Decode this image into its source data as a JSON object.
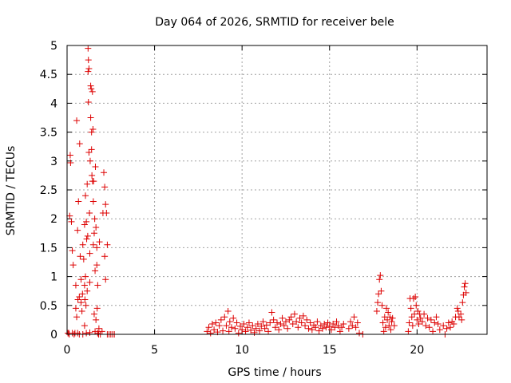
{
  "chart_data": {
    "type": "scatter",
    "title": "Day 064 of 2026, SRMTID for receiver bele",
    "xlabel": "GPS time / hours",
    "ylabel": "SRMTID / TECUs",
    "xlim": [
      0,
      24
    ],
    "ylim": [
      0,
      5
    ],
    "xticks": [
      0,
      5,
      10,
      15,
      20
    ],
    "yticks": [
      0,
      0.5,
      1,
      1.5,
      2,
      2.5,
      3,
      3.5,
      4,
      4.5,
      5
    ],
    "grid": true,
    "marker": "+",
    "color": "#dd0000",
    "series": [
      {
        "name": "SRMTID",
        "points": [
          [
            0.05,
            0.02
          ],
          [
            0.12,
            0.0
          ],
          [
            0.15,
            2.05
          ],
          [
            0.18,
            3.1
          ],
          [
            0.2,
            2.97
          ],
          [
            0.25,
            1.95
          ],
          [
            0.3,
            1.45
          ],
          [
            0.35,
            1.2
          ],
          [
            0.4,
            0.0
          ],
          [
            0.45,
            0.02
          ],
          [
            0.5,
            0.45
          ],
          [
            0.5,
            0.85
          ],
          [
            0.55,
            0.3
          ],
          [
            0.55,
            3.7
          ],
          [
            0.6,
            1.8
          ],
          [
            0.62,
            0.6
          ],
          [
            0.65,
            2.3
          ],
          [
            0.7,
            0.0
          ],
          [
            0.7,
            0.65
          ],
          [
            0.72,
            3.3
          ],
          [
            0.75,
            1.35
          ],
          [
            0.8,
            0.55
          ],
          [
            0.8,
            0.95
          ],
          [
            0.85,
            0.4
          ],
          [
            0.88,
            0.7
          ],
          [
            0.9,
            1.55
          ],
          [
            0.9,
            0.0
          ],
          [
            0.95,
            1.3
          ],
          [
            1.0,
            0.15
          ],
          [
            1.0,
            1.9
          ],
          [
            1.0,
            0.85
          ],
          [
            1.02,
            0.6
          ],
          [
            1.05,
            1.0
          ],
          [
            1.05,
            2.4
          ],
          [
            1.08,
            0.5
          ],
          [
            1.1,
            1.95
          ],
          [
            1.1,
            0.02
          ],
          [
            1.12,
            1.65
          ],
          [
            1.15,
            0.75
          ],
          [
            1.15,
            2.6
          ],
          [
            1.18,
            1.7
          ],
          [
            1.2,
            4.55
          ],
          [
            1.2,
            4.95
          ],
          [
            1.22,
            4.02
          ],
          [
            1.22,
            4.75
          ],
          [
            1.25,
            4.6
          ],
          [
            1.25,
            3.15
          ],
          [
            1.28,
            2.1
          ],
          [
            1.3,
            1.4
          ],
          [
            1.3,
            0.9
          ],
          [
            1.32,
            3.0
          ],
          [
            1.35,
            4.3
          ],
          [
            1.35,
            3.75
          ],
          [
            1.38,
            4.25
          ],
          [
            1.4,
            3.5
          ],
          [
            1.4,
            3.2
          ],
          [
            1.42,
            2.75
          ],
          [
            1.45,
            2.65
          ],
          [
            1.45,
            4.2
          ],
          [
            1.48,
            3.55
          ],
          [
            1.5,
            2.3
          ],
          [
            1.5,
            1.55
          ],
          [
            1.52,
            2.65
          ],
          [
            1.55,
            0.35
          ],
          [
            1.55,
            1.75
          ],
          [
            1.58,
            2.0
          ],
          [
            1.6,
            1.1
          ],
          [
            1.6,
            0.05
          ],
          [
            1.62,
            2.9
          ],
          [
            1.65,
            1.85
          ],
          [
            1.65,
            0.25
          ],
          [
            1.7,
            1.5
          ],
          [
            1.7,
            1.2
          ],
          [
            1.72,
            0.45
          ],
          [
            1.75,
            0.85
          ],
          [
            1.75,
            0.02
          ],
          [
            1.8,
            0.0
          ],
          [
            1.82,
            0.1
          ],
          [
            1.85,
            1.6
          ],
          [
            1.9,
            0.0
          ],
          [
            2.0,
            0.05
          ],
          [
            2.05,
            2.1
          ],
          [
            2.1,
            2.8
          ],
          [
            2.15,
            2.55
          ],
          [
            2.15,
            1.35
          ],
          [
            2.2,
            2.25
          ],
          [
            2.2,
            0.95
          ],
          [
            2.25,
            2.1
          ],
          [
            2.3,
            0.0
          ],
          [
            2.3,
            1.55
          ],
          [
            2.4,
            0.0
          ],
          [
            2.5,
            0.0
          ],
          [
            2.6,
            0.0
          ],
          [
            2.7,
            0.0
          ],
          [
            0.1,
            0.02
          ],
          [
            0.3,
            0.02
          ],
          [
            0.6,
            0.02
          ],
          [
            1.3,
            0.03
          ],
          [
            8.0,
            0.05
          ],
          [
            8.1,
            0.12
          ],
          [
            8.2,
            0.02
          ],
          [
            8.3,
            0.18
          ],
          [
            8.4,
            0.08
          ],
          [
            8.5,
            0.2
          ],
          [
            8.6,
            0.04
          ],
          [
            8.7,
            0.15
          ],
          [
            8.8,
            0.25
          ],
          [
            8.9,
            0.06
          ],
          [
            9.0,
            0.3
          ],
          [
            9.1,
            0.15
          ],
          [
            9.2,
            0.4
          ],
          [
            9.25,
            0.05
          ],
          [
            9.3,
            0.22
          ],
          [
            9.4,
            0.12
          ],
          [
            9.5,
            0.28
          ],
          [
            9.6,
            0.1
          ],
          [
            9.7,
            0.2
          ],
          [
            9.8,
            0.02
          ],
          [
            9.9,
            0.14
          ],
          [
            10.0,
            0.08
          ],
          [
            10.1,
            0.18
          ],
          [
            10.2,
            0.05
          ],
          [
            10.3,
            0.12
          ],
          [
            10.4,
            0.2
          ],
          [
            10.5,
            0.07
          ],
          [
            10.6,
            0.15
          ],
          [
            10.7,
            0.03
          ],
          [
            10.8,
            0.1
          ],
          [
            10.9,
            0.18
          ],
          [
            11.0,
            0.06
          ],
          [
            11.1,
            0.14
          ],
          [
            11.2,
            0.22
          ],
          [
            11.3,
            0.1
          ],
          [
            11.4,
            0.16
          ],
          [
            11.5,
            0.05
          ],
          [
            11.6,
            0.2
          ],
          [
            11.7,
            0.38
          ],
          [
            11.8,
            0.25
          ],
          [
            11.9,
            0.12
          ],
          [
            12.0,
            0.2
          ],
          [
            12.1,
            0.08
          ],
          [
            12.2,
            0.18
          ],
          [
            12.3,
            0.28
          ],
          [
            12.4,
            0.15
          ],
          [
            12.5,
            0.22
          ],
          [
            12.6,
            0.1
          ],
          [
            12.7,
            0.25
          ],
          [
            12.8,
            0.3
          ],
          [
            12.9,
            0.18
          ],
          [
            13.0,
            0.35
          ],
          [
            13.1,
            0.22
          ],
          [
            13.2,
            0.12
          ],
          [
            13.3,
            0.28
          ],
          [
            13.4,
            0.2
          ],
          [
            13.5,
            0.32
          ],
          [
            13.6,
            0.15
          ],
          [
            13.7,
            0.25
          ],
          [
            13.8,
            0.1
          ],
          [
            13.9,
            0.2
          ],
          [
            14.0,
            0.08
          ],
          [
            14.1,
            0.16
          ],
          [
            14.2,
            0.12
          ],
          [
            14.3,
            0.22
          ],
          [
            14.4,
            0.06
          ],
          [
            14.5,
            0.15
          ],
          [
            14.6,
            0.1
          ],
          [
            14.7,
            0.18
          ],
          [
            14.8,
            0.12
          ],
          [
            14.9,
            0.2
          ],
          [
            15.0,
            0.14
          ],
          [
            15.1,
            0.08
          ],
          [
            15.2,
            0.18
          ],
          [
            15.3,
            0.12
          ],
          [
            15.4,
            0.22
          ],
          [
            15.5,
            0.15
          ],
          [
            15.6,
            0.05
          ],
          [
            15.7,
            0.12
          ],
          [
            15.8,
            0.18
          ],
          [
            16.1,
            0.1
          ],
          [
            16.2,
            0.22
          ],
          [
            16.3,
            0.15
          ],
          [
            16.4,
            0.3
          ],
          [
            16.5,
            0.12
          ],
          [
            16.6,
            0.2
          ],
          [
            16.7,
            0.02
          ],
          [
            16.9,
            0.0
          ],
          [
            17.7,
            0.4
          ],
          [
            17.75,
            0.55
          ],
          [
            17.8,
            0.7
          ],
          [
            17.85,
            0.95
          ],
          [
            17.9,
            1.02
          ],
          [
            17.95,
            0.75
          ],
          [
            18.0,
            0.5
          ],
          [
            18.05,
            0.2
          ],
          [
            18.1,
            0.05
          ],
          [
            18.15,
            0.3
          ],
          [
            18.2,
            0.12
          ],
          [
            18.25,
            0.45
          ],
          [
            18.3,
            0.25
          ],
          [
            18.35,
            0.38
          ],
          [
            18.4,
            0.15
          ],
          [
            18.45,
            0.3
          ],
          [
            18.5,
            0.08
          ],
          [
            18.55,
            0.22
          ],
          [
            18.6,
            0.28
          ],
          [
            18.7,
            0.15
          ],
          [
            19.5,
            0.05
          ],
          [
            19.55,
            0.2
          ],
          [
            19.6,
            0.62
          ],
          [
            19.65,
            0.45
          ],
          [
            19.7,
            0.3
          ],
          [
            19.75,
            0.15
          ],
          [
            19.8,
            0.62
          ],
          [
            19.85,
            0.35
          ],
          [
            19.9,
            0.65
          ],
          [
            19.95,
            0.5
          ],
          [
            20.0,
            0.25
          ],
          [
            20.05,
            0.4
          ],
          [
            20.1,
            0.18
          ],
          [
            20.15,
            0.35
          ],
          [
            20.2,
            0.28
          ],
          [
            20.3,
            0.22
          ],
          [
            20.4,
            0.35
          ],
          [
            20.5,
            0.15
          ],
          [
            20.6,
            0.28
          ],
          [
            20.7,
            0.12
          ],
          [
            20.8,
            0.25
          ],
          [
            20.9,
            0.05
          ],
          [
            21.0,
            0.2
          ],
          [
            21.1,
            0.3
          ],
          [
            21.2,
            0.18
          ],
          [
            21.3,
            0.08
          ],
          [
            21.5,
            0.15
          ],
          [
            21.6,
            0.0
          ],
          [
            21.7,
            0.1
          ],
          [
            21.8,
            0.2
          ],
          [
            21.9,
            0.12
          ],
          [
            22.0,
            0.22
          ],
          [
            22.1,
            0.18
          ],
          [
            22.2,
            0.3
          ],
          [
            22.3,
            0.45
          ],
          [
            22.35,
            0.4
          ],
          [
            22.4,
            0.3
          ],
          [
            22.5,
            0.35
          ],
          [
            22.55,
            0.25
          ],
          [
            22.6,
            0.55
          ],
          [
            22.65,
            0.68
          ],
          [
            22.7,
            0.82
          ],
          [
            22.75,
            0.88
          ],
          [
            22.8,
            0.72
          ]
        ]
      }
    ]
  }
}
